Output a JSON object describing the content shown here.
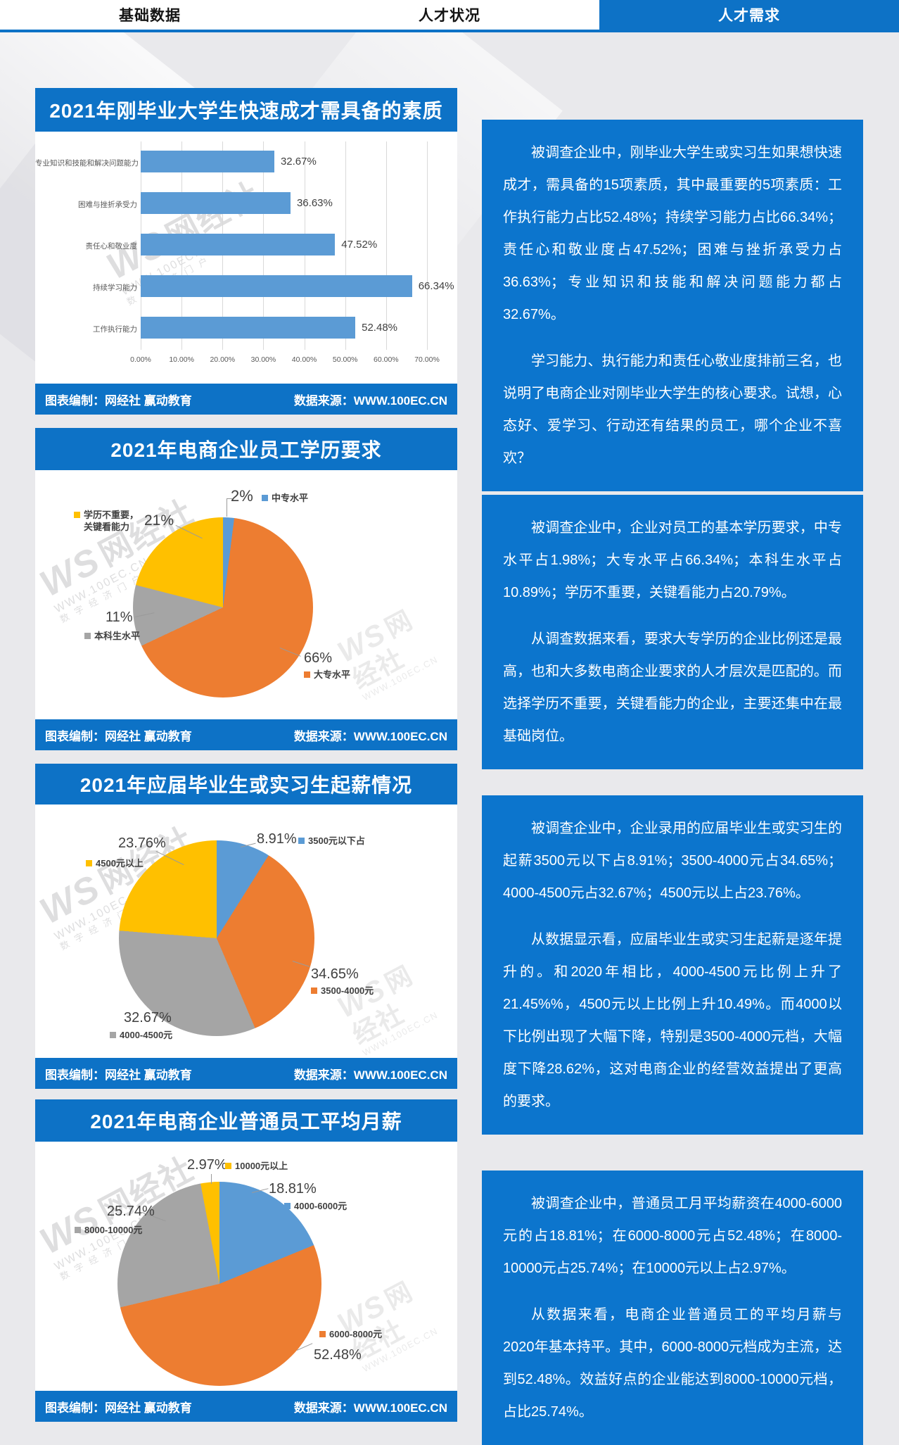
{
  "nav": {
    "tabs": [
      {
        "label": "基础数据",
        "active": false
      },
      {
        "label": "人才状况",
        "active": false
      },
      {
        "label": "人才需求",
        "active": true
      }
    ]
  },
  "footer": {
    "left": "图表编制：网经社 赢动教育",
    "right": "数据来源：WWW.100EC.CN"
  },
  "watermark": {
    "logo": "WS",
    "brand": "网经社",
    "url": "WWW.100EC.CN",
    "slogan": "数字经济门户"
  },
  "colors": {
    "primary_blue": "#0d72c6",
    "panel_blue": "#0c75cd",
    "bar_blue": "#5b9bd5",
    "pie_blue": "#5b9bd5",
    "pie_orange": "#ed7d31",
    "pie_gray": "#a5a5a5",
    "pie_yellow": "#ffc000"
  },
  "chart_data": [
    {
      "type": "bar",
      "orientation": "horizontal",
      "title": "2021年刚毕业大学生快速成才需具备的素质",
      "categories": [
        "专业知识和技能和解决问题能力",
        "困难与挫折承受力",
        "责任心和敬业度",
        "持续学习能力",
        "工作执行能力"
      ],
      "values": [
        32.67,
        36.63,
        47.52,
        66.34,
        52.48
      ],
      "value_labels": [
        "32.67%",
        "36.63%",
        "47.52%",
        "66.34%",
        "52.48%"
      ],
      "xlim": [
        0,
        70
      ],
      "x_ticks": [
        "0.00%",
        "10.00%",
        "20.00%",
        "30.00%",
        "40.00%",
        "50.00%",
        "60.00%",
        "70.00%"
      ],
      "bar_color": "#5b9bd5",
      "grid": true,
      "legend_position": "none"
    },
    {
      "type": "pie",
      "title": "2021年电商企业员工学历要求",
      "start_angle_deg": 0,
      "direction": "clockwise",
      "slices": [
        {
          "label": "中专水平",
          "value": 2,
          "pct_label": "2%",
          "color": "#5b9bd5"
        },
        {
          "label": "大专水平",
          "value": 66,
          "pct_label": "66%",
          "color": "#ed7d31"
        },
        {
          "label": "本科生水平",
          "value": 11,
          "pct_label": "11%",
          "color": "#a5a5a5"
        },
        {
          "label": "学历不重要，关键看能力",
          "value": 21,
          "pct_label": "21%",
          "color": "#ffc000"
        }
      ]
    },
    {
      "type": "pie",
      "title": "2021年应届毕业生或实习生起薪情况",
      "start_angle_deg": 0,
      "direction": "clockwise",
      "slices": [
        {
          "label": "3500元以下占",
          "value": 8.91,
          "pct_label": "8.91%",
          "color": "#5b9bd5"
        },
        {
          "label": "3500-4000元",
          "value": 34.65,
          "pct_label": "34.65%",
          "color": "#ed7d31"
        },
        {
          "label": "4000-4500元",
          "value": 32.67,
          "pct_label": "32.67%",
          "color": "#a5a5a5"
        },
        {
          "label": "4500元以上",
          "value": 23.76,
          "pct_label": "23.76%",
          "color": "#ffc000"
        }
      ]
    },
    {
      "type": "pie",
      "title": "2021年电商企业普通员工平均月薪",
      "start_angle_deg": 0,
      "direction": "clockwise",
      "slices": [
        {
          "label": "4000-6000元",
          "value": 18.81,
          "pct_label": "18.81%",
          "color": "#5b9bd5"
        },
        {
          "label": "6000-8000元",
          "value": 52.48,
          "pct_label": "52.48%",
          "color": "#ed7d31"
        },
        {
          "label": "8000-10000元",
          "value": 25.74,
          "pct_label": "25.74%",
          "color": "#a5a5a5"
        },
        {
          "label": "10000元以上",
          "value": 2.97,
          "pct_label": "2.97%",
          "color": "#ffc000"
        }
      ]
    }
  ],
  "panels": [
    {
      "paragraphs": [
        "被调查企业中，刚毕业大学生或实习生如果想快速成才，需具备的15项素质，其中最重要的5项素质：工作执行能力占比52.48%；持续学习能力占比66.34%；责任心和敬业度占47.52%；困难与挫折承受力占36.63%；专业知识和技能和解决问题能力都占32.67%。",
        "学习能力、执行能力和责任心敬业度排前三名，也说明了电商企业对刚毕业大学生的核心要求。试想，心态好、爱学习、行动还有结果的员工，哪个企业不喜欢？"
      ]
    },
    {
      "paragraphs": [
        "被调查企业中，企业对员工的基本学历要求，中专水平占1.98%；大专水平占66.34%；本科生水平占10.89%；学历不重要，关键看能力占20.79%。",
        "从调查数据来看，要求大专学历的企业比例还是最高，也和大多数电商企业要求的人才层次是匹配的。而选择学历不重要，关键看能力的企业，主要还集中在最基础岗位。"
      ]
    },
    {
      "paragraphs": [
        "被调查企业中，企业录用的应届毕业生或实习生的起薪3500元以下占8.91%；3500-4000元占34.65%；4000-4500元占32.67%；4500元以上占23.76%。",
        "从数据显示看，应届毕业生或实习生起薪是逐年提升的。和2020年相比，4000-4500元比例上升了21.45%%，4500元以上比例上升10.49%。而4000以下比例出现了大幅下降，特别是3500-4000元档，大幅度下降28.62%，这对电商企业的经营效益提出了更高的要求。"
      ]
    },
    {
      "paragraphs": [
        "被调查企业中，普通员工月平均薪资在4000-6000元的占18.81%；在6000-8000元占52.48%；在8000-10000元占25.74%；在10000元以上占2.97%。",
        "从数据来看，电商企业普通员工的平均月薪与2020年基本持平。其中，6000-8000元档成为主流，达到52.48%。效益好点的企业能达到8000-10000元档，占比25.74%。"
      ]
    }
  ]
}
